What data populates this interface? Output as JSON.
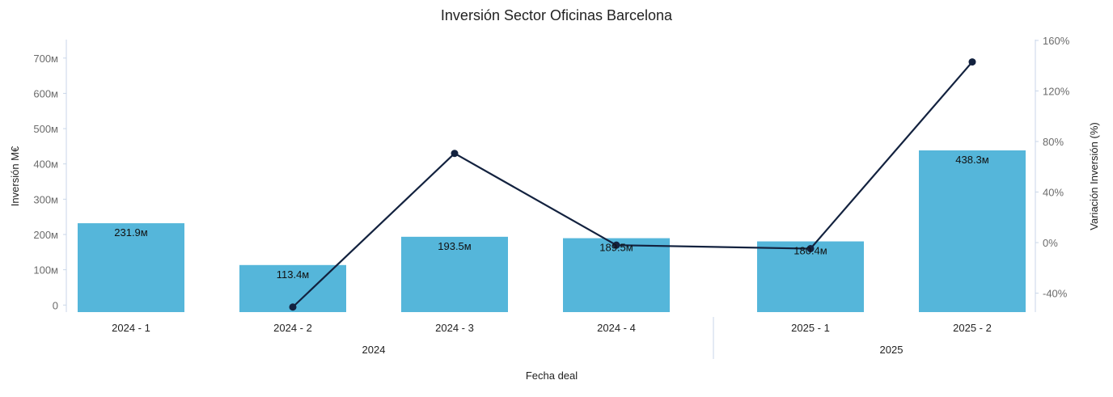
{
  "chart_data": {
    "type": "bar",
    "title": "Inversión Sector Oficinas Barcelona",
    "xlabel": "Fecha deal",
    "ylabel": "Inversión M€",
    "y2label": "Variación Inversión (%)",
    "categories": [
      "2024 - 1",
      "2024 - 2",
      "2024 - 3",
      "2024 - 4",
      "2025 - 1",
      "2025 - 2"
    ],
    "groups": [
      {
        "label": "2024",
        "categories": [
          "2024 - 1",
          "2024 - 2",
          "2024 - 3",
          "2024 - 4"
        ]
      },
      {
        "label": "2025",
        "categories": [
          "2025 - 1",
          "2025 - 2"
        ]
      }
    ],
    "series": [
      {
        "type": "bar",
        "axis": "left",
        "values": [
          231.9,
          113.4,
          193.5,
          189.5,
          180.4,
          438.3
        ],
        "labels": [
          "231.9м",
          "113.4м",
          "193.5м",
          "189.5м",
          "180.4м",
          "438.3м"
        ]
      },
      {
        "type": "line",
        "axis": "right",
        "values": [
          null,
          -51,
          70.6,
          -2,
          -4.8,
          143
        ]
      }
    ],
    "ylim": [
      -20,
      750
    ],
    "y_ticks": [
      0,
      100,
      200,
      300,
      400,
      500,
      600,
      700
    ],
    "y_tick_labels": [
      "0",
      "100м",
      "200м",
      "300м",
      "400м",
      "500м",
      "600м",
      "700м"
    ],
    "y2lim": [
      -55,
      160
    ],
    "y2_ticks": [
      -40,
      0,
      40,
      80,
      120,
      160
    ],
    "y2_tick_labels": [
      "-40%",
      "0%",
      "40%",
      "80%",
      "120%",
      "160%"
    ],
    "grid": false,
    "legend": "none",
    "colors": {
      "bar": "#55b6da",
      "line": "#13223f",
      "axis": "#c9d6e8"
    }
  }
}
